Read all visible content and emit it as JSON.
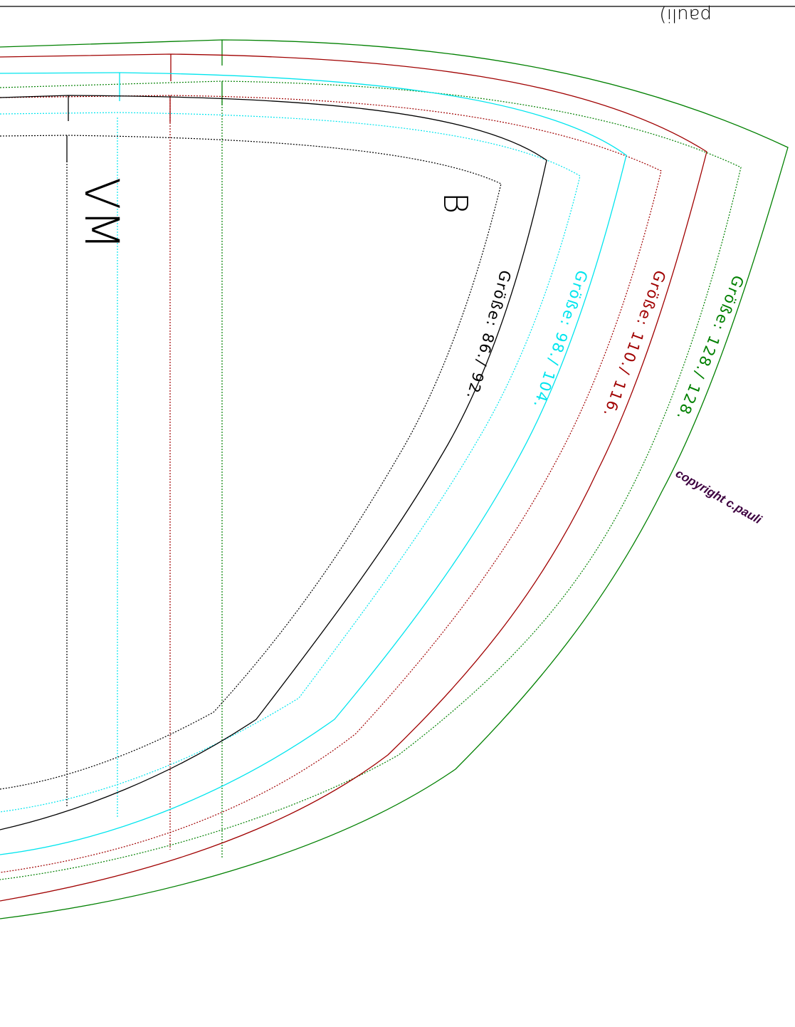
{
  "header": {
    "fragment_text": "pauli)"
  },
  "piece": {
    "letter": "B",
    "center_mark": "VM"
  },
  "size_labels": [
    {
      "text": "Größe: 86./ 92.",
      "color": "#000000"
    },
    {
      "text": "Größe: 98./ 104.",
      "color": "#00e5ee"
    },
    {
      "text": "Größe: 110./ 116.",
      "color": "#a00000"
    },
    {
      "text": "Größe: 128./ 128.",
      "color": "#008000"
    }
  ],
  "copyright": {
    "text": "copyright c.pauli",
    "color": "#3d0040"
  },
  "colors": {
    "size_86": "#000000",
    "size_98": "#00e5ee",
    "size_110": "#a00000",
    "size_128": "#008000",
    "frame": "#000000"
  }
}
